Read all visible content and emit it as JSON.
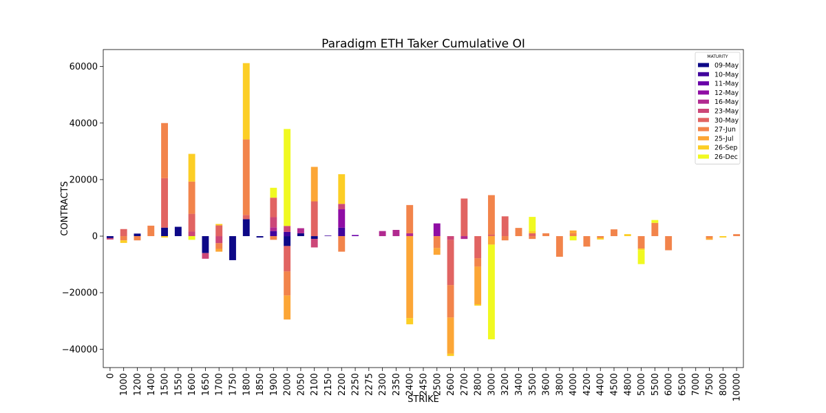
{
  "chart_data": {
    "type": "bar",
    "stacked": true,
    "title": "Paradigm ETH Taker Cumulative OI",
    "xlabel": "STRIKE",
    "ylabel": "CONTRACTS",
    "ylim": [
      -46500,
      66000
    ],
    "yticks": [
      -40000,
      -20000,
      0,
      20000,
      40000,
      60000
    ],
    "ytick_labels": [
      "−40000",
      "−20000",
      "0",
      "20000",
      "40000",
      "60000"
    ],
    "legend_title": "MATURITY",
    "legend_position": "top-right",
    "grid": false,
    "categories": [
      "0",
      "1000",
      "1200",
      "1400",
      "1500",
      "1550",
      "1600",
      "1650",
      "1700",
      "1750",
      "1800",
      "1850",
      "1900",
      "2000",
      "2050",
      "2100",
      "2150",
      "2200",
      "2250",
      "2275",
      "2300",
      "2350",
      "2400",
      "2450",
      "2500",
      "2600",
      "2700",
      "2800",
      "3000",
      "3200",
      "3400",
      "3500",
      "3600",
      "3800",
      "4000",
      "4200",
      "4400",
      "4500",
      "4800",
      "5000",
      "5500",
      "6000",
      "6500",
      "7000",
      "7500",
      "8000",
      "10000"
    ],
    "series": [
      {
        "name": "09-May",
        "color": "#0d0887",
        "values": [
          -700,
          0,
          900,
          0,
          3000,
          3300,
          0,
          -6000,
          0,
          -8500,
          6000,
          -500,
          0,
          -3500,
          1000,
          -1000,
          0,
          0,
          0,
          0,
          0,
          0,
          0,
          0,
          0,
          0,
          0,
          0,
          0,
          0,
          0,
          0,
          0,
          0,
          0,
          0,
          0,
          0,
          0,
          0,
          0,
          0,
          0,
          0,
          0,
          0,
          0
        ]
      },
      {
        "name": "10-May",
        "color": "#41049d",
        "values": [
          0,
          0,
          0,
          0,
          0,
          0,
          0,
          0,
          0,
          0,
          0,
          0,
          1800,
          1500,
          0,
          0,
          200,
          3000,
          0,
          0,
          0,
          0,
          0,
          0,
          0,
          0,
          0,
          0,
          0,
          0,
          0,
          0,
          0,
          0,
          0,
          0,
          0,
          0,
          0,
          0,
          0,
          0,
          0,
          0,
          0,
          0,
          0
        ]
      },
      {
        "name": "11-May",
        "color": "#6a00a8",
        "values": [
          0,
          0,
          0,
          0,
          0,
          0,
          0,
          0,
          0,
          0,
          0,
          0,
          0,
          0,
          0,
          0,
          0,
          0,
          400,
          0,
          0,
          0,
          0,
          0,
          0,
          0,
          0,
          0,
          0,
          0,
          0,
          0,
          0,
          0,
          0,
          0,
          0,
          0,
          0,
          0,
          0,
          0,
          0,
          0,
          0,
          0,
          0
        ]
      },
      {
        "name": "12-May",
        "color": "#8f0da4",
        "values": [
          0,
          0,
          0,
          0,
          0,
          0,
          0,
          0,
          0,
          0,
          0,
          0,
          0,
          0,
          0,
          0,
          0,
          6500,
          0,
          0,
          0,
          0,
          0,
          0,
          4500,
          0,
          0,
          0,
          0,
          0,
          0,
          0,
          0,
          0,
          0,
          0,
          0,
          0,
          0,
          0,
          0,
          0,
          0,
          0,
          0,
          0,
          0
        ]
      },
      {
        "name": "16-May",
        "color": "#b12a90",
        "values": [
          0,
          0,
          0,
          0,
          0,
          0,
          0,
          0,
          0,
          0,
          0,
          0,
          1300,
          0,
          1800,
          0,
          0,
          0,
          0,
          0,
          1800,
          2200,
          1000,
          0,
          0,
          0,
          -1000,
          0,
          0,
          0,
          0,
          0,
          0,
          0,
          0,
          0,
          0,
          0,
          0,
          0,
          0,
          0,
          0,
          0,
          0,
          0,
          0
        ]
      },
      {
        "name": "23-May",
        "color": "#cc4778",
        "values": [
          -500,
          0,
          0,
          0,
          0,
          0,
          1600,
          -2000,
          -2500,
          0,
          0,
          0,
          3600,
          2100,
          0,
          -3000,
          0,
          1900,
          0,
          0,
          0,
          0,
          0,
          0,
          0,
          -1300,
          0,
          0,
          0,
          0,
          0,
          0,
          0,
          0,
          0,
          0,
          0,
          0,
          0,
          0,
          0,
          0,
          0,
          0,
          0,
          0,
          0
        ]
      },
      {
        "name": "30-May",
        "color": "#e16462",
        "values": [
          0,
          2500,
          0,
          0,
          17500,
          0,
          6300,
          0,
          3800,
          0,
          1500,
          0,
          6900,
          -9000,
          0,
          12300,
          0,
          0,
          0,
          0,
          0,
          0,
          0,
          0,
          0,
          -16000,
          13300,
          -7800,
          600,
          7000,
          0,
          1000,
          0,
          0,
          0,
          0,
          0,
          0,
          0,
          0,
          0,
          0,
          0,
          0,
          0,
          0,
          0
        ]
      },
      {
        "name": "27-Jun",
        "color": "#f2844b",
        "values": [
          0,
          -1500,
          -1500,
          3700,
          19500,
          0,
          11400,
          0,
          -2000,
          0,
          26700,
          0,
          -1300,
          -8500,
          0,
          0,
          0,
          -5500,
          0,
          0,
          0,
          0,
          10000,
          0,
          -4200,
          -11500,
          0,
          -3000,
          13900,
          -1500,
          2900,
          -1000,
          1000,
          -7300,
          1000,
          -3700,
          -600,
          2400,
          0,
          -4400,
          4700,
          -5000,
          0,
          0,
          -600,
          0,
          700
        ]
      },
      {
        "name": "25-Jul",
        "color": "#fca636",
        "values": [
          0,
          0,
          0,
          0,
          0,
          0,
          0,
          0,
          -1000,
          0,
          0,
          0,
          0,
          -8500,
          0,
          12200,
          0,
          0,
          0,
          0,
          0,
          0,
          -29000,
          0,
          -2400,
          -12800,
          0,
          -13300,
          -3000,
          0,
          0,
          0,
          0,
          0,
          1000,
          0,
          0,
          0,
          0,
          0,
          0,
          0,
          0,
          0,
          -700,
          0,
          0
        ]
      },
      {
        "name": "26-Sep",
        "color": "#fcce25",
        "values": [
          0,
          -900,
          0,
          0,
          -500,
          0,
          9800,
          0,
          500,
          0,
          27000,
          0,
          0,
          0,
          0,
          0,
          0,
          10500,
          0,
          0,
          0,
          0,
          -2200,
          0,
          0,
          -800,
          0,
          -500,
          0,
          0,
          0,
          800,
          0,
          0,
          0,
          0,
          -600,
          0,
          700,
          -500,
          0,
          0,
          0,
          0,
          0,
          -500,
          0
        ]
      },
      {
        "name": "26-Dec",
        "color": "#f0f921",
        "values": [
          0,
          0,
          0,
          0,
          0,
          0,
          -1300,
          0,
          0,
          0,
          0,
          0,
          3500,
          34300,
          0,
          0,
          0,
          0,
          0,
          0,
          0,
          0,
          0,
          0,
          0,
          0,
          0,
          0,
          -33500,
          0,
          0,
          5000,
          0,
          0,
          -1500,
          0,
          0,
          0,
          0,
          -5000,
          1000,
          0,
          0,
          0,
          0,
          0,
          0
        ]
      }
    ]
  }
}
